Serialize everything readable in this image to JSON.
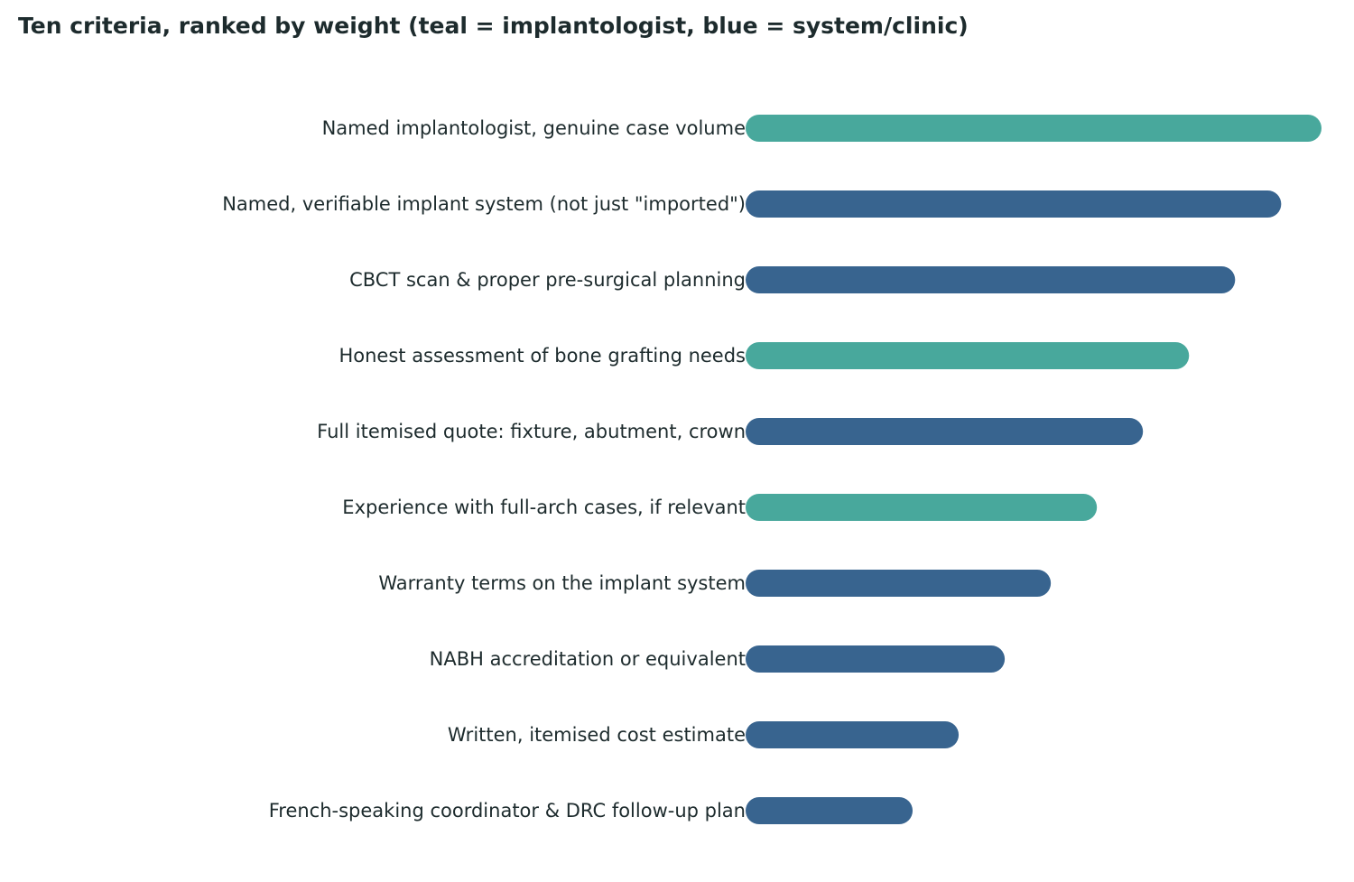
{
  "chart_data": {
    "type": "bar",
    "orientation": "horizontal",
    "title": "Ten criteria, ranked by weight (teal = implantologist, blue = system/clinic)",
    "xlabel": "",
    "ylabel": "",
    "xlim": [
      0,
      10
    ],
    "grid": false,
    "legend": "none",
    "group_colors": {
      "implantologist": "#48a89c",
      "system/clinic": "#38648f"
    },
    "categories": [
      "Named implantologist, genuine case volume",
      "Named, verifiable implant system (not just \"imported\")",
      "CBCT scan & proper pre-surgical planning",
      "Honest assessment of bone grafting needs",
      "Full itemised quote: fixture, abutment, crown",
      "Experience with full-arch cases, if relevant",
      "Warranty terms on the implant system",
      "NABH accreditation or equivalent",
      "Written, itemised cost estimate",
      "French-speaking coordinator & DRC follow-up plan"
    ],
    "values": [
      10,
      9.3,
      8.5,
      7.7,
      6.9,
      6.1,
      5.3,
      4.5,
      3.7,
      2.9
    ],
    "groups": [
      "implantologist",
      "system/clinic",
      "system/clinic",
      "implantologist",
      "system/clinic",
      "implantologist",
      "system/clinic",
      "system/clinic",
      "system/clinic",
      "system/clinic"
    ]
  }
}
